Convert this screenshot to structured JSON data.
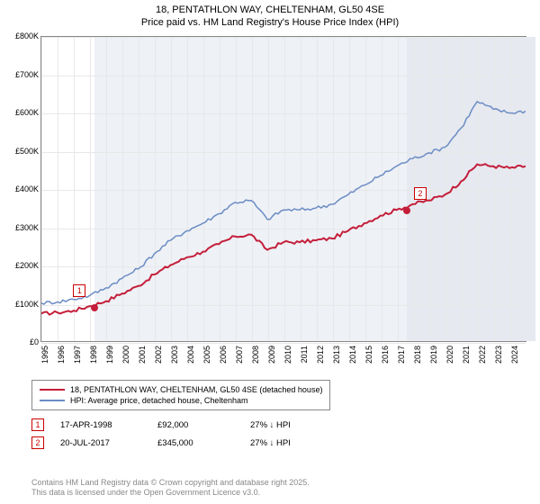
{
  "title_line1": "18, PENTATHLON WAY, CHELTENHAM, GL50 4SE",
  "title_line2": "Price paid vs. HM Land Registry's House Price Index (HPI)",
  "chart": {
    "type": "line",
    "background_color": "#ffffff",
    "grid_color": "#e8e8e8",
    "shade_band1_color": "#eef1f6",
    "shade_band2_color": "#e6e9f0",
    "ylim": [
      0,
      800000
    ],
    "ytick_step": 100000,
    "yticks": [
      "£0",
      "£100K",
      "£200K",
      "£300K",
      "£400K",
      "£500K",
      "£600K",
      "£700K",
      "£800K"
    ],
    "xlim": [
      1995,
      2025
    ],
    "xticks": [
      "1995",
      "1996",
      "1997",
      "1998",
      "1999",
      "2000",
      "2001",
      "2002",
      "2003",
      "2004",
      "2005",
      "2006",
      "2007",
      "2008",
      "2009",
      "2010",
      "2011",
      "2012",
      "2013",
      "2014",
      "2015",
      "2016",
      "2017",
      "2018",
      "2019",
      "2020",
      "2021",
      "2022",
      "2023",
      "2024"
    ],
    "shade1": {
      "start": 1998.3,
      "end": 2017.55
    },
    "shade2": {
      "start": 2017.55,
      "end": 2025.5
    },
    "series": [
      {
        "name": "price_paid",
        "label": "18, PENTATHLON WAY, CHELTENHAM, GL50 4SE (detached house)",
        "color": "#c41e3a",
        "line_width": 2,
        "years": [
          1995,
          1996,
          1997,
          1998,
          1999,
          2000,
          2001,
          2002,
          2003,
          2004,
          2005,
          2006,
          2007,
          2008,
          2009,
          2010,
          2011,
          2012,
          2013,
          2014,
          2015,
          2016,
          2017,
          2018,
          2019,
          2020,
          2021,
          2022,
          2023,
          2024,
          2025
        ],
        "values": [
          72000,
          75000,
          80000,
          92000,
          105000,
          125000,
          145000,
          175000,
          200000,
          220000,
          235000,
          255000,
          275000,
          280000,
          240000,
          260000,
          260000,
          265000,
          270000,
          290000,
          310000,
          330000,
          345000,
          360000,
          370000,
          385000,
          420000,
          465000,
          460000,
          455000,
          460000
        ]
      },
      {
        "name": "hpi",
        "label": "HPI: Average price, detached house, Cheltenham",
        "color": "#6b8cc4",
        "line_width": 1.5,
        "years": [
          1995,
          1996,
          1997,
          1998,
          1999,
          2000,
          2001,
          2002,
          2003,
          2004,
          2005,
          2006,
          2007,
          2008,
          2009,
          2010,
          2011,
          2012,
          2013,
          2014,
          2015,
          2016,
          2017,
          2018,
          2019,
          2020,
          2021,
          2022,
          2023,
          2024,
          2025
        ],
        "values": [
          100000,
          103000,
          110000,
          120000,
          140000,
          165000,
          190000,
          230000,
          265000,
          290000,
          310000,
          335000,
          365000,
          370000,
          320000,
          345000,
          345000,
          350000,
          360000,
          385000,
          410000,
          435000,
          460000,
          480000,
          495000,
          510000,
          560000,
          630000,
          610000,
          600000,
          605000
        ]
      }
    ],
    "markers": [
      {
        "id": "1",
        "year": 1998.3,
        "value": 92000,
        "box_offset_x": -24,
        "box_offset_y": -26
      },
      {
        "id": "2",
        "year": 2017.55,
        "value": 345000,
        "box_offset_x": 8,
        "box_offset_y": -26
      }
    ]
  },
  "legend": {
    "items": [
      {
        "color": "#c41e3a",
        "width": 2,
        "label": "18, PENTATHLON WAY, CHELTENHAM, GL50 4SE (detached house)"
      },
      {
        "color": "#6b8cc4",
        "width": 1.5,
        "label": "HPI: Average price, detached house, Cheltenham"
      }
    ]
  },
  "sales": [
    {
      "id": "1",
      "date": "17-APR-1998",
      "price": "£92,000",
      "pct": "27% ↓ HPI"
    },
    {
      "id": "2",
      "date": "20-JUL-2017",
      "price": "£345,000",
      "pct": "27% ↓ HPI"
    }
  ],
  "footer_line1": "Contains HM Land Registry data © Crown copyright and database right 2025.",
  "footer_line2": "This data is licensed under the Open Government Licence v3.0."
}
